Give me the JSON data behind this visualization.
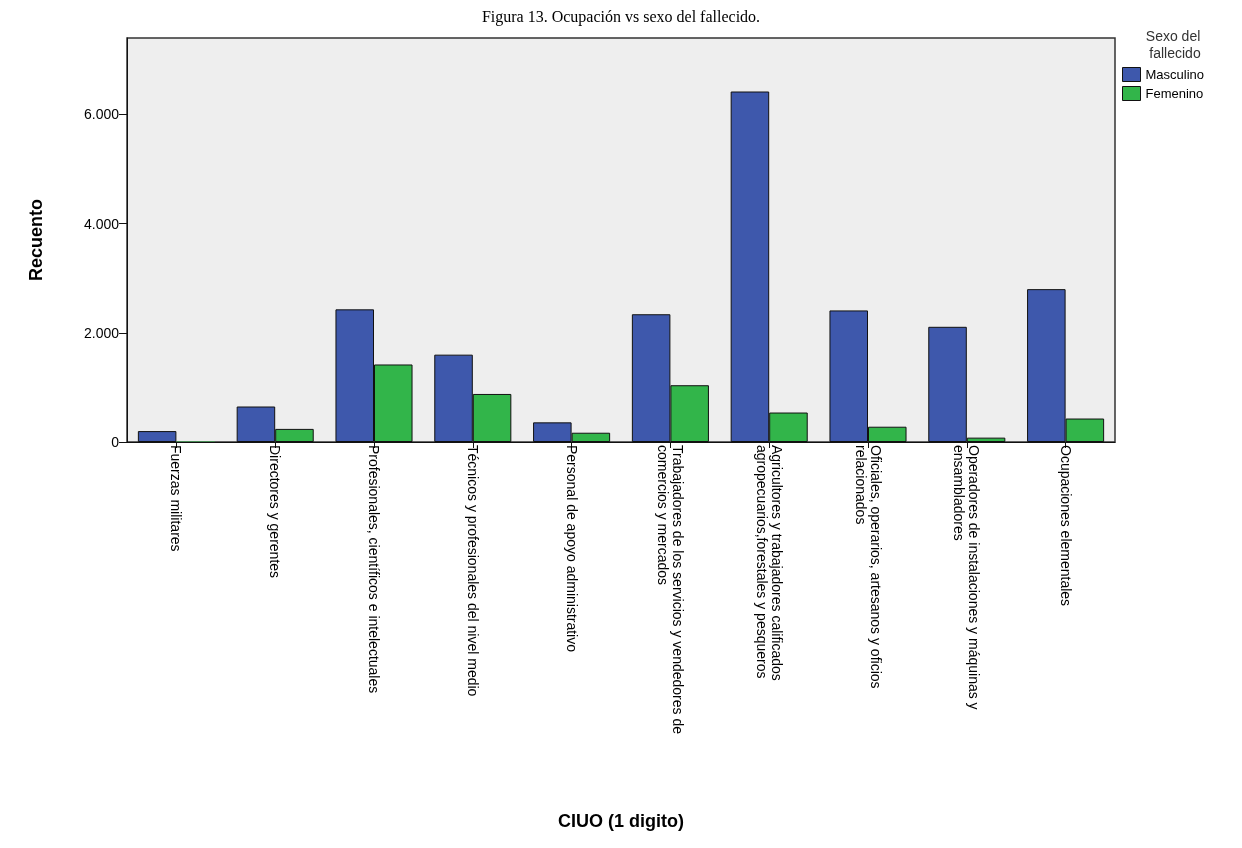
{
  "chart_data": {
    "type": "bar",
    "title": "Figura 13. Ocupación vs sexo del fallecido.",
    "xlabel": "CIUO (1 digito)",
    "ylabel": "Recuento",
    "legend_title": "Sexo del fallecido",
    "legend": "top right",
    "categories": [
      "Fuerzas militares",
      "Directores y gerentes",
      "Profesionales, científicos e intelectuales",
      "Técnicos y profesionales del nivel medio",
      "Personal de apoyo administrativo",
      "Trabajadores de los servicios y vendedores de comercios y mercados",
      "Agricultores y trabajadores calificados agropecuarios,forestales y pesqueros",
      "Oficiales, operarios, artesanos y oficios relacionados",
      "Operadores de instalaciones y máquinas y ensambladores",
      "Ocupaciones elementales"
    ],
    "series": [
      {
        "name": "Masculino",
        "color": "#3e58ac",
        "values": [
          200,
          650,
          2430,
          1600,
          360,
          2340,
          6420,
          2410,
          2110,
          2800
        ]
      },
      {
        "name": "Femenino",
        "color": "#32b54a",
        "values": [
          10,
          240,
          1420,
          880,
          170,
          1040,
          540,
          280,
          80,
          430
        ]
      }
    ],
    "ylim": [
      0,
      7400
    ],
    "yticks": [
      {
        "value": 0,
        "label": "0"
      },
      {
        "value": 2000,
        "label": "2.000"
      },
      {
        "value": 4000,
        "label": "4.000"
      },
      {
        "value": 6000,
        "label": "6.000"
      }
    ]
  }
}
